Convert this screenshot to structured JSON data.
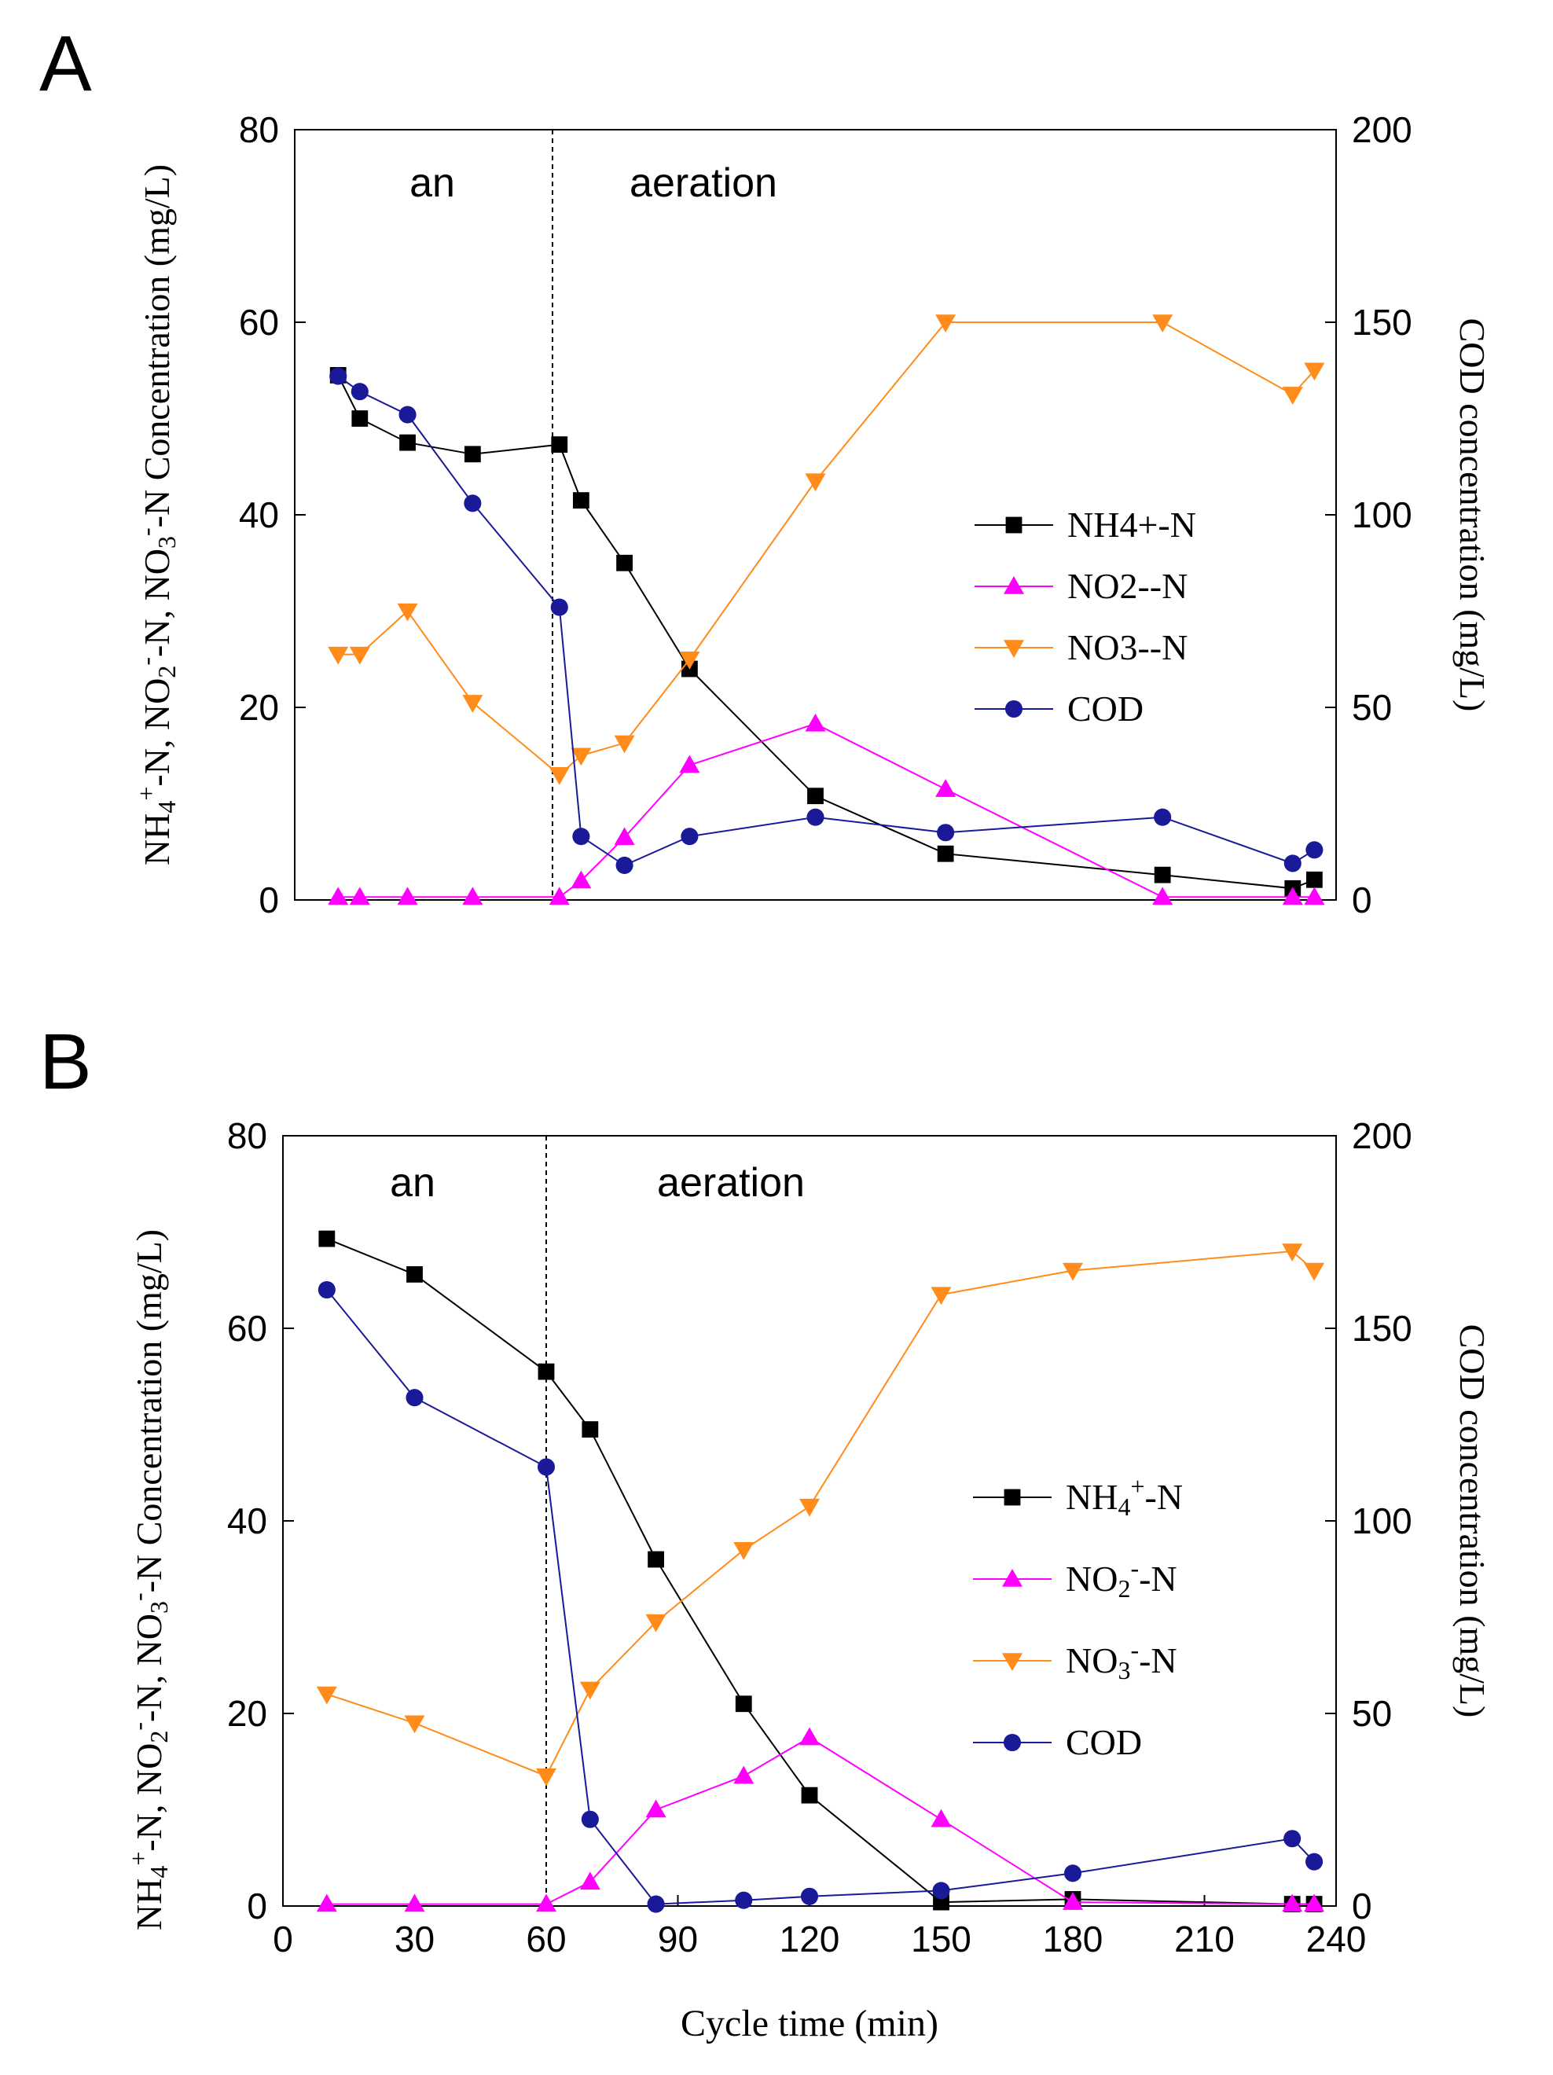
{
  "x_axis_label": "Cycle time (min)",
  "colors": {
    "nh4": "#000000",
    "no2": "#ff00ff",
    "no3": "#ff8c1a",
    "cod": "#1a1a99"
  },
  "chart_data": [
    {
      "type": "line",
      "panel": "A",
      "xlim": [
        0,
        240
      ],
      "ylim_left": [
        0,
        80
      ],
      "ylim_right": [
        0,
        200
      ],
      "left_yticks": [
        0,
        20,
        40,
        60,
        80
      ],
      "right_yticks": [
        0,
        50,
        100,
        150,
        200
      ],
      "xticks": [],
      "left_ylabel": {
        "main": "NH",
        "sub1": "4",
        "sup1": "+",
        "p2": "-N, NO",
        "sub2": "2",
        "sup2": "-",
        "p3": "-N, NO",
        "sub3": "3",
        "sup3": "-",
        "p4": "-N Concentration (mg/L)"
      },
      "right_ylabel": "COD concentration (mg/L)",
      "regions": [
        {
          "label": "an",
          "x": 30
        },
        {
          "label": "aeration",
          "x": 100
        }
      ],
      "divider_x": 60,
      "legend_position": "center-right",
      "series": [
        {
          "name": "NH4+-N",
          "label_parts": [
            "NH4+-N"
          ],
          "axis": "left",
          "marker": "square",
          "color_key": "nh4",
          "x": [
            10,
            15,
            26,
            41,
            61,
            66,
            76,
            91,
            120,
            150,
            200,
            230,
            235
          ],
          "y": [
            54.5,
            50.0,
            47.5,
            46.3,
            47.3,
            41.5,
            35.0,
            24.0,
            10.8,
            4.8,
            2.6,
            1.2,
            2.1
          ]
        },
        {
          "name": "NO2--N",
          "label_parts": [
            "NO2--N"
          ],
          "axis": "left",
          "marker": "triangle-up",
          "color_key": "no2",
          "x": [
            10,
            15,
            26,
            41,
            61,
            66,
            76,
            91,
            120,
            150,
            200,
            230,
            235
          ],
          "y": [
            0.3,
            0.3,
            0.3,
            0.3,
            0.3,
            2.0,
            6.5,
            14.0,
            18.3,
            11.5,
            0.3,
            0.3,
            0.3
          ]
        },
        {
          "name": "NO3--N",
          "label_parts": [
            "NO3--N"
          ],
          "axis": "left",
          "marker": "triangle-down",
          "color_key": "no3",
          "x": [
            10,
            15,
            26,
            41,
            61,
            66,
            76,
            91,
            120,
            150,
            200,
            230,
            235
          ],
          "y": [
            25.5,
            25.5,
            30.0,
            20.5,
            13.0,
            15.0,
            16.3,
            25.0,
            43.5,
            60.0,
            60.0,
            52.5,
            55.0
          ]
        },
        {
          "name": "COD",
          "label_parts": [
            "COD"
          ],
          "axis": "right",
          "marker": "circle",
          "color_key": "cod",
          "x": [
            10,
            15,
            26,
            41,
            61,
            66,
            76,
            91,
            120,
            150,
            200,
            230,
            235
          ],
          "y": [
            136,
            132,
            126,
            103,
            76,
            16.5,
            9,
            16.5,
            21.5,
            17.5,
            21.5,
            9.5,
            13
          ]
        }
      ]
    },
    {
      "type": "line",
      "panel": "B",
      "xlim": [
        0,
        240
      ],
      "ylim_left": [
        0,
        80
      ],
      "ylim_right": [
        0,
        200
      ],
      "left_yticks": [
        0,
        20,
        40,
        60,
        80
      ],
      "right_yticks": [
        0,
        50,
        100,
        150,
        200
      ],
      "xticks": [
        0,
        30,
        60,
        90,
        120,
        150,
        180,
        210,
        240
      ],
      "left_ylabel": {
        "main": "NH",
        "sub1": "4",
        "sup1": "+",
        "p2": "-N,  NO",
        "sub2": "2",
        "sup2": "-",
        "p3": "-N,  NO",
        "sub3": "3",
        "sup3": "-",
        "p4": "-N  Concentration (mg/L)"
      },
      "right_ylabel": "COD concentration (mg/L)",
      "regions": [
        {
          "label": "an",
          "x": 30
        },
        {
          "label": "aeration",
          "x": 110
        }
      ],
      "divider_x": 60,
      "legend_position": "center-right",
      "series": [
        {
          "name": "NH4+-N",
          "label_parts": [
            "NH",
            "4",
            "+",
            "-N"
          ],
          "axis": "left",
          "marker": "square",
          "color_key": "nh4",
          "x": [
            10,
            30,
            60,
            70,
            85,
            105,
            120,
            150,
            180,
            230,
            235
          ],
          "y": [
            69.3,
            65.6,
            55.5,
            49.5,
            36.0,
            21.0,
            11.5,
            0.4,
            0.7,
            0.2,
            0.2
          ]
        },
        {
          "name": "NO2--N",
          "label_parts": [
            "NO",
            "2",
            "-",
            "-N"
          ],
          "axis": "left",
          "marker": "triangle-up",
          "color_key": "no2",
          "x": [
            10,
            30,
            60,
            70,
            85,
            105,
            120,
            150,
            180,
            230,
            235
          ],
          "y": [
            0.2,
            0.2,
            0.2,
            2.5,
            10.0,
            13.5,
            17.5,
            9.0,
            0.4,
            0.2,
            0.2
          ]
        },
        {
          "name": "NO3--N",
          "label_parts": [
            "NO",
            "3",
            "-",
            "-N"
          ],
          "axis": "left",
          "marker": "triangle-down",
          "color_key": "no3",
          "x": [
            10,
            30,
            60,
            70,
            85,
            105,
            120,
            150,
            180,
            230,
            235
          ],
          "y": [
            22.0,
            19.0,
            13.5,
            22.5,
            29.5,
            37.0,
            41.5,
            63.5,
            66.0,
            68.0,
            66.0
          ]
        },
        {
          "name": "COD",
          "label_parts": [
            "COD"
          ],
          "axis": "right",
          "marker": "circle",
          "color_key": "cod",
          "x": [
            10,
            30,
            60,
            70,
            85,
            105,
            120,
            150,
            180,
            230,
            235
          ],
          "y": [
            160,
            132,
            114,
            22.5,
            0.5,
            1.5,
            2.5,
            4,
            8.5,
            17.5,
            11.5
          ]
        }
      ]
    }
  ]
}
